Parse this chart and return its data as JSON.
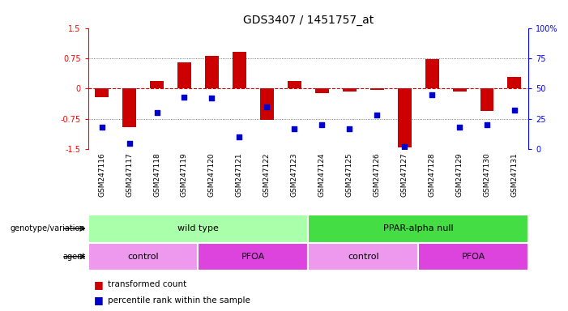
{
  "title": "GDS3407 / 1451757_at",
  "samples": [
    "GSM247116",
    "GSM247117",
    "GSM247118",
    "GSM247119",
    "GSM247120",
    "GSM247121",
    "GSM247122",
    "GSM247123",
    "GSM247124",
    "GSM247125",
    "GSM247126",
    "GSM247127",
    "GSM247128",
    "GSM247129",
    "GSM247130",
    "GSM247131"
  ],
  "bar_values": [
    -0.22,
    -0.95,
    0.18,
    0.65,
    0.82,
    0.92,
    -0.78,
    0.18,
    -0.12,
    -0.08,
    -0.03,
    -1.45,
    0.72,
    -0.08,
    -0.55,
    0.28
  ],
  "dot_values": [
    18,
    5,
    30,
    43,
    42,
    10,
    35,
    17,
    20,
    17,
    28,
    2,
    45,
    18,
    20,
    32
  ],
  "ylim_left": [
    -1.5,
    1.5
  ],
  "ylim_right": [
    0,
    100
  ],
  "bar_color": "#cc0000",
  "dot_color": "#0000cc",
  "zero_line_color": "#cc0000",
  "grid_color": "#555555",
  "genotype_groups": [
    {
      "label": "wild type",
      "start": 0,
      "end": 7,
      "color": "#aaffaa"
    },
    {
      "label": "PPAR-alpha null",
      "start": 8,
      "end": 15,
      "color": "#44dd44"
    }
  ],
  "agent_groups": [
    {
      "label": "control",
      "start": 0,
      "end": 3,
      "color": "#ee99ee"
    },
    {
      "label": "PFOA",
      "start": 4,
      "end": 7,
      "color": "#dd44dd"
    },
    {
      "label": "control",
      "start": 8,
      "end": 11,
      "color": "#ee99ee"
    },
    {
      "label": "PFOA",
      "start": 12,
      "end": 15,
      "color": "#dd44dd"
    }
  ],
  "bg_color": "#ffffff",
  "tick_label_size": 7,
  "tick_box_color": "#cccccc"
}
